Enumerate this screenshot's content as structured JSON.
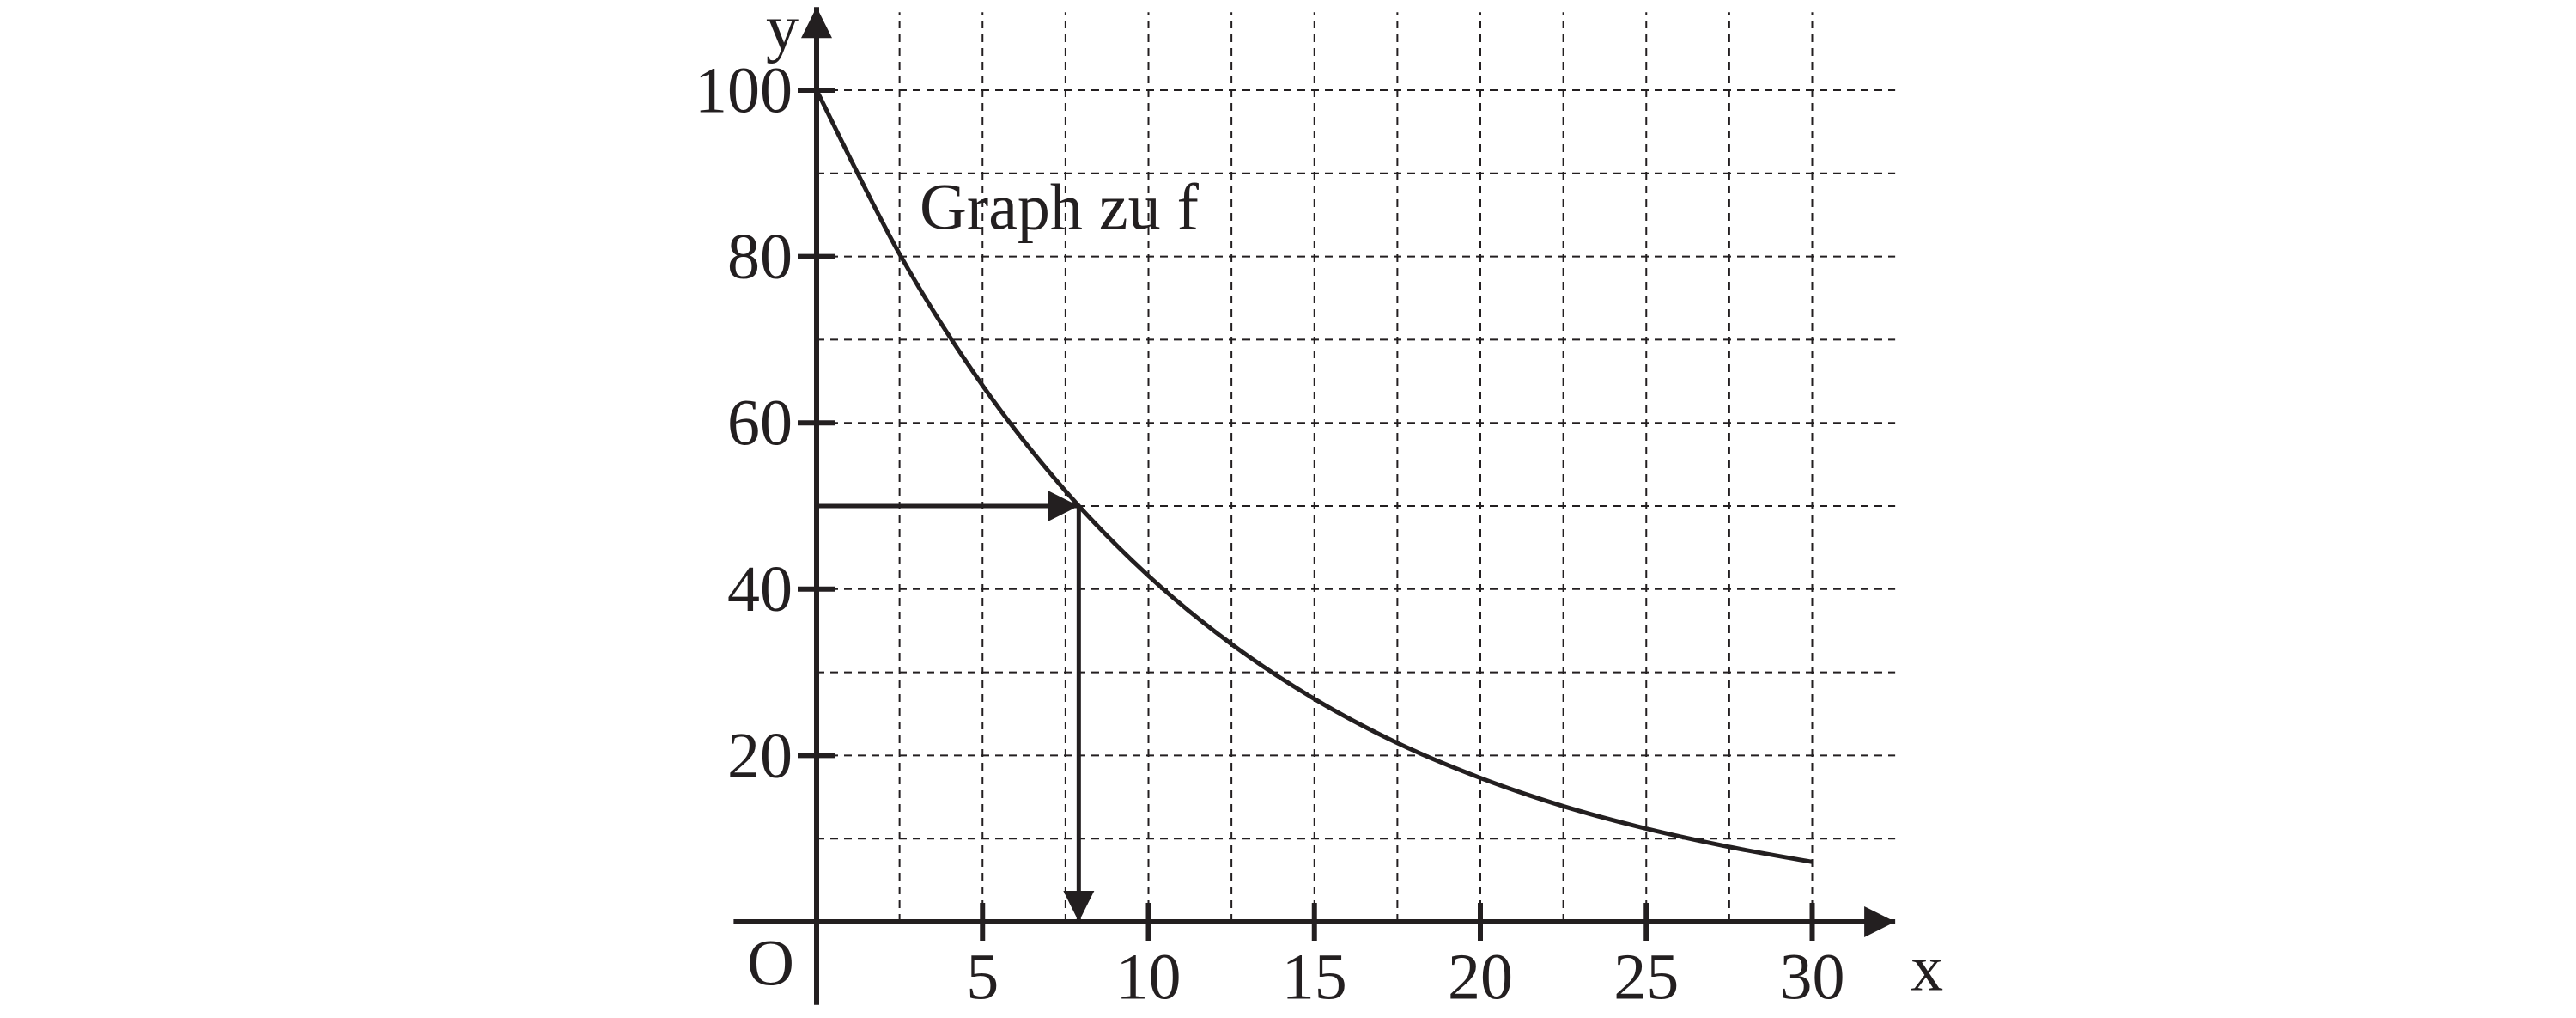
{
  "chart_data": {
    "type": "line",
    "annotation": "Graph zu f",
    "x_label": "x",
    "y_label": "y",
    "origin_label": "O",
    "x": [
      0,
      2.5,
      5,
      7.5,
      10,
      12.5,
      15,
      17.5,
      20,
      22.5,
      25,
      27.5,
      30
    ],
    "series": [
      {
        "color": "#231f20",
        "values": [
          100,
          80.3,
          64.5,
          51.8,
          41.6,
          33.4,
          26.8,
          21.5,
          17.3,
          13.9,
          11.2,
          9.0,
          7.2
        ]
      }
    ],
    "xlim": [
      -2.5,
      32.5
    ],
    "ylim": [
      -10,
      110
    ],
    "xticks": [
      5,
      10,
      15,
      20,
      25,
      30
    ],
    "yticks": [
      20,
      40,
      60,
      80,
      100
    ],
    "x_gridlines": [
      2.5,
      5,
      7.5,
      10,
      12.5,
      15,
      17.5,
      20,
      22.5,
      25,
      27.5,
      30
    ],
    "y_gridlines": [
      10,
      20,
      30,
      40,
      50,
      60,
      70,
      80,
      90,
      100
    ],
    "readoff": {
      "x": 7.9,
      "y": 50
    },
    "grid": true
  }
}
